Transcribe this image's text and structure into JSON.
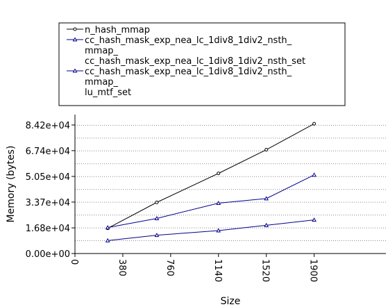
{
  "chart_data": {
    "type": "line",
    "xlabel": "Size",
    "ylabel": "Memory (bytes)",
    "xlim": [
      0,
      2470
    ],
    "ylim": [
      0,
      91000
    ],
    "x_ticks": [
      "0",
      "380",
      "760",
      "1140",
      "1520",
      "1900"
    ],
    "y_ticks": [
      "0.00e+00",
      "1.68e+04",
      "3.37e+04",
      "5.05e+04",
      "6.74e+04",
      "8.42e+04"
    ],
    "legend_position": "top",
    "grid": "horizontal-dotted",
    "series": [
      {
        "name": "n_hash_mmap",
        "color": "#000000",
        "marker": "circle",
        "x": [
          260,
          650,
          1140,
          1520,
          1900
        ],
        "y": [
          16500,
          33500,
          52500,
          68000,
          85000
        ]
      },
      {
        "name": "cc_hash_mask_exp_nea_lc_1div8_1div2_nsth_mmap_cc_hash_mask_exp_nea_lc_1div8_1div2_nsth_set",
        "legend_lines": [
          "cc_hash_mask_exp_nea_lc_1div8_1div2_nsth_",
          "mmap_",
          "cc_hash_mask_exp_nea_lc_1div8_1div2_nsth_set"
        ],
        "color": "#00008b",
        "marker": "triangle",
        "x": [
          260,
          650,
          1140,
          1520,
          1900
        ],
        "y": [
          17000,
          23000,
          33000,
          36000,
          51500
        ]
      },
      {
        "name": "cc_hash_mask_exp_nea_lc_1div8_1div2_nsth_mmap_lu_mtf_set",
        "legend_lines": [
          "cc_hash_mask_exp_nea_lc_1div8_1div2_nsth_",
          "mmap_",
          "lu_mtf_set"
        ],
        "color": "#00008b",
        "marker": "triangle",
        "x": [
          260,
          650,
          1140,
          1520,
          1900
        ],
        "y": [
          8500,
          12000,
          15000,
          18500,
          22000
        ]
      }
    ]
  }
}
